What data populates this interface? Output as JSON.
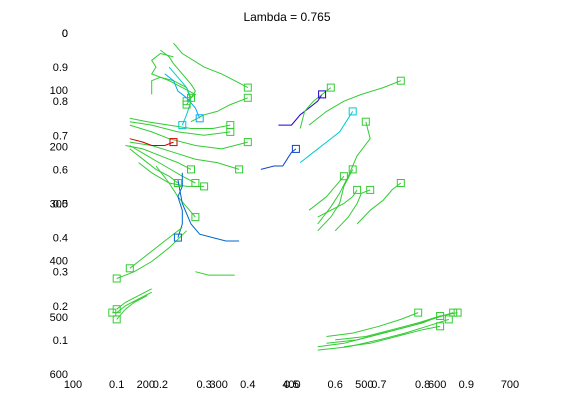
{
  "chart_data": {
    "type": "line",
    "title": "Lambda  = 0.765",
    "overlaid_axes": [
      {
        "name": "image-pixel-axes",
        "xlim": [
          100,
          700
        ],
        "ylim": [
          0,
          600
        ],
        "y_reversed": true,
        "xticks": [
          100,
          200,
          300,
          400,
          500,
          600,
          700
        ],
        "yticks": [
          0,
          100,
          200,
          300,
          400,
          500,
          600
        ]
      },
      {
        "name": "normalized-axes",
        "xlim": [
          0,
          1
        ],
        "ylim": [
          0,
          1
        ],
        "y_reversed": false,
        "xticks": [
          0.1,
          0.2,
          0.3,
          0.4,
          0.5,
          0.6,
          0.7,
          0.8,
          0.9
        ],
        "yticks": [
          0.1,
          0.2,
          0.3,
          0.4,
          0.5,
          0.6,
          0.7,
          0.8,
          0.9,
          1
        ]
      }
    ],
    "tick_labels": {
      "x_bottom": [
        "100",
        "0.1",
        "200",
        "0.2",
        "0.3",
        "300",
        "0.4",
        "400",
        "0.5",
        "0.6",
        "500",
        "0.7",
        "0.8",
        "600",
        "0.9",
        "700"
      ],
      "y_left": [
        "0",
        "0",
        "0.9",
        "100",
        "0.8",
        "0.7",
        "200",
        "0.6",
        "300",
        "0.5",
        "0.4",
        "400",
        "0.3",
        "0.2",
        "500",
        "0.1",
        "600"
      ]
    },
    "marker": "square",
    "series": [
      {
        "color": "#33cc33",
        "points": [
          [
            0.23,
            0.93
          ],
          [
            0.2,
            0.94
          ],
          [
            0.18,
            0.92
          ],
          [
            0.19,
            0.9
          ],
          [
            0.18,
            0.88
          ],
          [
            0.22,
            0.86
          ],
          [
            0.25,
            0.84
          ],
          [
            0.28,
            0.82
          ],
          [
            0.26,
            0.8
          ]
        ],
        "end": "square"
      },
      {
        "color": "#33cc33",
        "points": [
          [
            0.2,
            0.95
          ],
          [
            0.22,
            0.93
          ],
          [
            0.23,
            0.91
          ],
          [
            0.25,
            0.88
          ],
          [
            0.27,
            0.85
          ],
          [
            0.28,
            0.83
          ],
          [
            0.26,
            0.79
          ]
        ],
        "end": "square"
      },
      {
        "color": "#33cc33",
        "points": [
          [
            0.18,
            0.82
          ],
          [
            0.18,
            0.86
          ],
          [
            0.2,
            0.87
          ],
          [
            0.23,
            0.86
          ],
          [
            0.26,
            0.84
          ],
          [
            0.27,
            0.81
          ]
        ],
        "end": "square"
      },
      {
        "color": "#33cc33",
        "points": [
          [
            0.23,
            0.97
          ],
          [
            0.25,
            0.94
          ],
          [
            0.3,
            0.9
          ],
          [
            0.34,
            0.88
          ],
          [
            0.37,
            0.86
          ],
          [
            0.4,
            0.84
          ]
        ],
        "end": "square"
      },
      {
        "color": "#00aaff",
        "points": [
          [
            0.21,
            0.88
          ],
          [
            0.23,
            0.86
          ],
          [
            0.24,
            0.83
          ],
          [
            0.26,
            0.81
          ],
          [
            0.28,
            0.78
          ],
          [
            0.29,
            0.75
          ]
        ],
        "end": "square"
      },
      {
        "color": "#00cccc",
        "points": [
          [
            0.22,
            0.9
          ],
          [
            0.24,
            0.87
          ],
          [
            0.26,
            0.84
          ],
          [
            0.27,
            0.8
          ],
          [
            0.26,
            0.76
          ],
          [
            0.25,
            0.73
          ]
        ],
        "end": "square"
      },
      {
        "color": "#33cc33",
        "points": [
          [
            0.27,
            0.74
          ],
          [
            0.3,
            0.76
          ],
          [
            0.33,
            0.77
          ],
          [
            0.36,
            0.79
          ],
          [
            0.4,
            0.81
          ]
        ],
        "end": "square"
      },
      {
        "color": "#33cc33",
        "points": [
          [
            0.13,
            0.75
          ],
          [
            0.17,
            0.74
          ],
          [
            0.22,
            0.73
          ],
          [
            0.27,
            0.72
          ],
          [
            0.32,
            0.72
          ],
          [
            0.36,
            0.73
          ]
        ],
        "end": "square"
      },
      {
        "color": "#33cc33",
        "points": [
          [
            0.13,
            0.74
          ],
          [
            0.18,
            0.73
          ],
          [
            0.24,
            0.71
          ],
          [
            0.3,
            0.7
          ],
          [
            0.36,
            0.71
          ]
        ],
        "end": "square"
      },
      {
        "color": "#33cc33",
        "points": [
          [
            0.13,
            0.73
          ],
          [
            0.18,
            0.71
          ],
          [
            0.22,
            0.69
          ],
          [
            0.28,
            0.67
          ],
          [
            0.34,
            0.66
          ],
          [
            0.4,
            0.68
          ]
        ],
        "end": "square"
      },
      {
        "color": "#33cc33",
        "points": [
          [
            0.13,
            0.68
          ],
          [
            0.18,
            0.67
          ],
          [
            0.23,
            0.65
          ],
          [
            0.28,
            0.63
          ],
          [
            0.33,
            0.62
          ],
          [
            0.38,
            0.6
          ]
        ],
        "end": "square"
      },
      {
        "color": "#33cc33",
        "points": [
          [
            0.13,
            0.67
          ],
          [
            0.17,
            0.64
          ],
          [
            0.21,
            0.61
          ],
          [
            0.25,
            0.58
          ],
          [
            0.28,
            0.56
          ]
        ],
        "end": "square"
      },
      {
        "color": "#33cc33",
        "points": [
          [
            0.13,
            0.66
          ],
          [
            0.16,
            0.63
          ],
          [
            0.19,
            0.6
          ],
          [
            0.22,
            0.58
          ],
          [
            0.24,
            0.56
          ]
        ],
        "end": "square"
      },
      {
        "color": "#33cc33",
        "points": [
          [
            0.15,
            0.62
          ],
          [
            0.18,
            0.59
          ],
          [
            0.22,
            0.56
          ],
          [
            0.26,
            0.55
          ],
          [
            0.3,
            0.55
          ]
        ],
        "end": "square"
      },
      {
        "color": "#33cc33",
        "points": [
          [
            0.12,
            0.67
          ],
          [
            0.16,
            0.66
          ],
          [
            0.2,
            0.64
          ],
          [
            0.24,
            0.62
          ],
          [
            0.27,
            0.6
          ]
        ],
        "end": "square"
      },
      {
        "color": "#33cc33",
        "points": [
          [
            0.19,
            0.61
          ],
          [
            0.22,
            0.56
          ],
          [
            0.24,
            0.52
          ],
          [
            0.26,
            0.49
          ],
          [
            0.28,
            0.46
          ]
        ],
        "end": "square"
      },
      {
        "color": "#cc0000",
        "points": [
          [
            0.13,
            0.69
          ],
          [
            0.16,
            0.68
          ],
          [
            0.18,
            0.67
          ],
          [
            0.21,
            0.67
          ],
          [
            0.23,
            0.68
          ]
        ],
        "end": "square"
      },
      {
        "color": "#0066cc",
        "points": [
          [
            0.25,
            0.59
          ],
          [
            0.25,
            0.55
          ],
          [
            0.24,
            0.52
          ],
          [
            0.25,
            0.48
          ],
          [
            0.25,
            0.44
          ],
          [
            0.24,
            0.4
          ]
        ],
        "end": "square"
      },
      {
        "color": "#0066cc",
        "points": [
          [
            0.24,
            0.57
          ],
          [
            0.25,
            0.5
          ],
          [
            0.27,
            0.44
          ],
          [
            0.29,
            0.41
          ],
          [
            0.32,
            0.4
          ],
          [
            0.35,
            0.39
          ],
          [
            0.38,
            0.39
          ]
        ],
        "end": "none"
      },
      {
        "color": "#1144cc",
        "points": [
          [
            0.43,
            0.6
          ],
          [
            0.46,
            0.61
          ],
          [
            0.48,
            0.61
          ],
          [
            0.49,
            0.63
          ],
          [
            0.5,
            0.65
          ],
          [
            0.51,
            0.66
          ]
        ],
        "end": "square"
      },
      {
        "color": "#2200cc",
        "points": [
          [
            0.47,
            0.73
          ],
          [
            0.5,
            0.73
          ],
          [
            0.52,
            0.76
          ],
          [
            0.54,
            0.78
          ],
          [
            0.56,
            0.8
          ],
          [
            0.57,
            0.82
          ]
        ],
        "end": "square"
      },
      {
        "color": "#33cc33",
        "points": [
          [
            0.52,
            0.72
          ],
          [
            0.53,
            0.77
          ],
          [
            0.55,
            0.8
          ],
          [
            0.57,
            0.82
          ],
          [
            0.59,
            0.84
          ]
        ],
        "end": "square"
      },
      {
        "color": "#33cc33",
        "points": [
          [
            0.54,
            0.73
          ],
          [
            0.58,
            0.77
          ],
          [
            0.62,
            0.8
          ],
          [
            0.66,
            0.82
          ],
          [
            0.71,
            0.84
          ],
          [
            0.75,
            0.86
          ]
        ],
        "end": "square"
      },
      {
        "color": "#00cccc",
        "points": [
          [
            0.52,
            0.62
          ],
          [
            0.55,
            0.65
          ],
          [
            0.58,
            0.68
          ],
          [
            0.61,
            0.71
          ],
          [
            0.63,
            0.75
          ],
          [
            0.64,
            0.77
          ]
        ],
        "end": "square"
      },
      {
        "color": "#33cc33",
        "points": [
          [
            0.56,
            0.44
          ],
          [
            0.59,
            0.49
          ],
          [
            0.61,
            0.53
          ],
          [
            0.63,
            0.58
          ],
          [
            0.65,
            0.64
          ],
          [
            0.68,
            0.69
          ],
          [
            0.67,
            0.74
          ]
        ],
        "end": "square"
      },
      {
        "color": "#33cc33",
        "points": [
          [
            0.56,
            0.42
          ],
          [
            0.59,
            0.46
          ],
          [
            0.61,
            0.5
          ],
          [
            0.62,
            0.55
          ],
          [
            0.64,
            0.6
          ]
        ],
        "end": "square"
      },
      {
        "color": "#33cc33",
        "points": [
          [
            0.54,
            0.48
          ],
          [
            0.58,
            0.52
          ],
          [
            0.6,
            0.55
          ],
          [
            0.62,
            0.58
          ]
        ],
        "end": "square"
      },
      {
        "color": "#33cc33",
        "points": [
          [
            0.56,
            0.46
          ],
          [
            0.59,
            0.48
          ],
          [
            0.62,
            0.5
          ],
          [
            0.64,
            0.52
          ],
          [
            0.65,
            0.54
          ]
        ],
        "end": "square"
      },
      {
        "color": "#33cc33",
        "points": [
          [
            0.6,
            0.42
          ],
          [
            0.63,
            0.46
          ],
          [
            0.65,
            0.5
          ],
          [
            0.66,
            0.53
          ],
          [
            0.68,
            0.54
          ]
        ],
        "end": "square"
      },
      {
        "color": "#33cc33",
        "points": [
          [
            0.65,
            0.44
          ],
          [
            0.68,
            0.48
          ],
          [
            0.71,
            0.51
          ],
          [
            0.73,
            0.54
          ],
          [
            0.75,
            0.56
          ]
        ],
        "end": "square"
      },
      {
        "color": "#33cc33",
        "points": [
          [
            0.26,
            0.42
          ],
          [
            0.22,
            0.37
          ],
          [
            0.18,
            0.33
          ],
          [
            0.14,
            0.3
          ],
          [
            0.1,
            0.28
          ]
        ],
        "end": "square"
      },
      {
        "color": "#33cc33",
        "points": [
          [
            0.25,
            0.43
          ],
          [
            0.2,
            0.38
          ],
          [
            0.16,
            0.34
          ],
          [
            0.13,
            0.31
          ]
        ],
        "end": "square"
      },
      {
        "color": "#33cc33",
        "points": [
          [
            0.28,
            0.3
          ],
          [
            0.31,
            0.29
          ],
          [
            0.34,
            0.29
          ],
          [
            0.37,
            0.29
          ]
        ],
        "end": "none"
      },
      {
        "color": "#33cc33",
        "points": [
          [
            0.18,
            0.25
          ],
          [
            0.15,
            0.23
          ],
          [
            0.12,
            0.21
          ],
          [
            0.1,
            0.19
          ]
        ],
        "end": "square"
      },
      {
        "color": "#33cc33",
        "points": [
          [
            0.18,
            0.24
          ],
          [
            0.15,
            0.22
          ],
          [
            0.12,
            0.2
          ],
          [
            0.1,
            0.18
          ],
          [
            0.09,
            0.18
          ]
        ],
        "end": "square"
      },
      {
        "color": "#33cc33",
        "points": [
          [
            0.17,
            0.23
          ],
          [
            0.14,
            0.21
          ],
          [
            0.12,
            0.19
          ],
          [
            0.1,
            0.16
          ]
        ],
        "end": "square"
      },
      {
        "color": "#33cc33",
        "points": [
          [
            0.56,
            0.08
          ],
          [
            0.62,
            0.09
          ],
          [
            0.68,
            0.11
          ],
          [
            0.74,
            0.13
          ],
          [
            0.8,
            0.15
          ],
          [
            0.84,
            0.17
          ]
        ],
        "end": "square"
      },
      {
        "color": "#33cc33",
        "points": [
          [
            0.56,
            0.07
          ],
          [
            0.63,
            0.08
          ],
          [
            0.7,
            0.1
          ],
          [
            0.76,
            0.12
          ],
          [
            0.81,
            0.14
          ],
          [
            0.86,
            0.16
          ]
        ],
        "end": "square"
      },
      {
        "color": "#33cc33",
        "points": [
          [
            0.58,
            0.09
          ],
          [
            0.65,
            0.1
          ],
          [
            0.71,
            0.12
          ],
          [
            0.77,
            0.14
          ],
          [
            0.82,
            0.16
          ],
          [
            0.87,
            0.18
          ]
        ],
        "end": "square"
      },
      {
        "color": "#33cc33",
        "points": [
          [
            0.6,
            0.1
          ],
          [
            0.67,
            0.11
          ],
          [
            0.73,
            0.13
          ],
          [
            0.79,
            0.15
          ],
          [
            0.84,
            0.17
          ],
          [
            0.88,
            0.18
          ]
        ],
        "end": "square"
      },
      {
        "color": "#33cc33",
        "points": [
          [
            0.62,
            0.08
          ],
          [
            0.68,
            0.09
          ],
          [
            0.74,
            0.11
          ],
          [
            0.8,
            0.13
          ],
          [
            0.84,
            0.14
          ]
        ],
        "end": "square"
      },
      {
        "color": "#33cc33",
        "points": [
          [
            0.58,
            0.11
          ],
          [
            0.64,
            0.12
          ],
          [
            0.7,
            0.14
          ],
          [
            0.75,
            0.16
          ],
          [
            0.79,
            0.18
          ]
        ],
        "end": "square"
      }
    ]
  }
}
